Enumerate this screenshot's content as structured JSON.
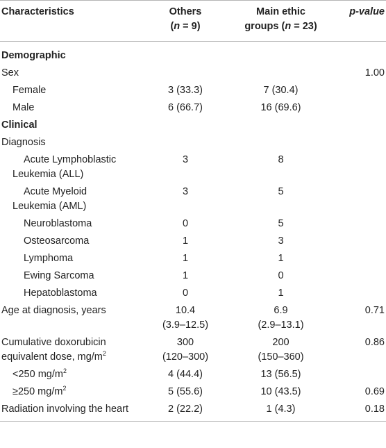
{
  "header": {
    "col1": "Characteristics",
    "col2_line1": "Others",
    "col2_line2": "(n = 9)",
    "col3_line1": "Main ethic",
    "col3_line2": "groups (n = 23)",
    "col4": "p-value"
  },
  "rows": {
    "demographic": "Demographic",
    "sex": {
      "label": "Sex",
      "p": "1.00"
    },
    "female": {
      "label": "Female",
      "others": "3 (33.3)",
      "main": "7 (30.4)"
    },
    "male": {
      "label": "Male",
      "others": "6 (66.7)",
      "main": "16 (69.6)"
    },
    "clinical": "Clinical",
    "diagnosis": "Diagnosis",
    "all": {
      "label_line1": "Acute Lymphoblastic",
      "label_line2": "Leukemia (ALL)",
      "others": "3",
      "main": "8"
    },
    "aml": {
      "label_line1": "Acute Myeloid",
      "label_line2": "Leukemia (AML)",
      "others": "3",
      "main": "5"
    },
    "neuroblastoma": {
      "label": "Neuroblastoma",
      "others": "0",
      "main": "5"
    },
    "osteosarcoma": {
      "label": "Osteosarcoma",
      "others": "1",
      "main": "3"
    },
    "lymphoma": {
      "label": "Lymphoma",
      "others": "1",
      "main": "1"
    },
    "ewing": {
      "label": "Ewing Sarcoma",
      "others": "1",
      "main": "0"
    },
    "hepatoblastoma": {
      "label": "Hepatoblastoma",
      "others": "0",
      "main": "1"
    },
    "age": {
      "label": "Age at diagnosis, years",
      "others_line1": "10.4",
      "others_line2": "(3.9–12.5)",
      "main_line1": "6.9",
      "main_line2": "(2.9–13.1)",
      "p": "0.71"
    },
    "dose": {
      "label_line1": "Cumulative doxorubicin",
      "label_line2": "equivalent dose, mg/m",
      "label_sup": "2",
      "others_line1": "300",
      "others_line2": "(120–300)",
      "main_line1": "200",
      "main_line2": "(150–360)",
      "p": "0.86"
    },
    "lt250": {
      "label": "<250 mg/m",
      "label_sup": "2",
      "others": "4 (44.4)",
      "main": "13 (56.5)"
    },
    "ge250": {
      "label": "≥250 mg/m",
      "label_sup": "2",
      "others": "5 (55.6)",
      "main": "10 (43.5)",
      "p": "0.69"
    },
    "radiation": {
      "label": "Radiation involving the heart",
      "others": "2 (22.2)",
      "main": "1 (4.3)",
      "p": "0.18"
    }
  }
}
